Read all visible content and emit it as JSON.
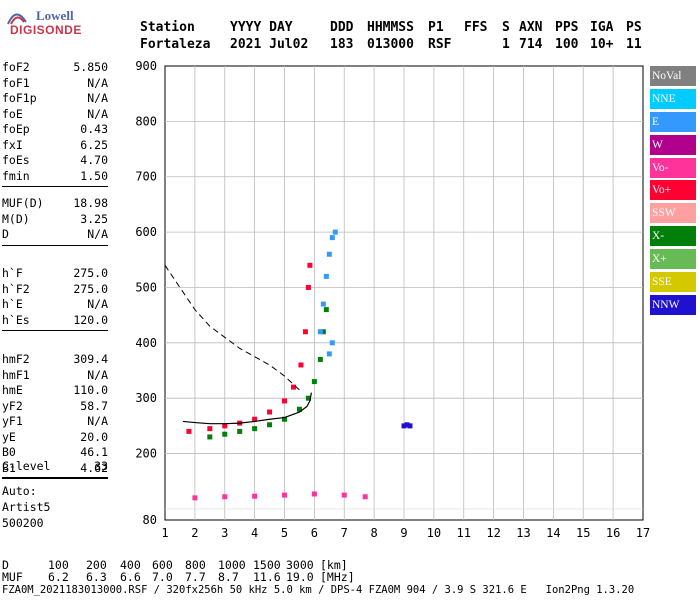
{
  "logo": {
    "line1": "Lowell",
    "line2": "DIGISONDE"
  },
  "header": {
    "row1": [
      "Station",
      "YYYY DAY",
      "DDD",
      "HHMMSS",
      "P1",
      "FFS",
      "S",
      "AXN",
      "PPS",
      "IGA",
      "PS"
    ],
    "row2": [
      "Fortaleza",
      "2021 Jul02",
      "183",
      "013000",
      "RSF",
      "",
      "1",
      "714",
      "100",
      "10+",
      "11"
    ]
  },
  "params": {
    "group1": [
      {
        "key": "foF2",
        "value": "5.850"
      },
      {
        "key": "foF1",
        "value": "N/A"
      },
      {
        "key": "foF1p",
        "value": "N/A"
      },
      {
        "key": "foE",
        "value": "N/A"
      },
      {
        "key": "foEp",
        "value": "0.43"
      },
      {
        "key": "fxI",
        "value": "6.25"
      },
      {
        "key": "foEs",
        "value": "4.70"
      },
      {
        "key": "fmin",
        "value": "1.50"
      }
    ],
    "group2": [
      {
        "key": "MUF(D)",
        "value": "18.98"
      },
      {
        "key": "M(D)",
        "value": "3.25"
      },
      {
        "key": "D",
        "value": "N/A"
      }
    ],
    "group3": [
      {
        "key": "h`F",
        "value": "275.0"
      },
      {
        "key": "h`F2",
        "value": "275.0"
      },
      {
        "key": "h`E",
        "value": "N/A"
      },
      {
        "key": "h`Es",
        "value": "120.0"
      }
    ],
    "group4": [
      {
        "key": "hmF2",
        "value": "309.4"
      },
      {
        "key": "hmF1",
        "value": "N/A"
      },
      {
        "key": "hmE",
        "value": "110.0"
      },
      {
        "key": "yF2",
        "value": "58.7"
      },
      {
        "key": "yF1",
        "value": "N/A"
      },
      {
        "key": "yE",
        "value": "20.0"
      },
      {
        "key": "B0",
        "value": "46.1"
      },
      {
        "key": "B1",
        "value": "4.62"
      }
    ],
    "group5": [
      {
        "key": "C-level",
        "value": "33"
      }
    ],
    "auto": [
      "Auto:",
      "Artist5",
      "500200"
    ]
  },
  "legend": [
    {
      "label": "NoVal",
      "color": "#808080"
    },
    {
      "label": "NNE",
      "color": "#00ccff"
    },
    {
      "label": "E",
      "color": "#3399ff"
    },
    {
      "label": "W",
      "color": "#b0008c"
    },
    {
      "label": "Vo-",
      "color": "#ff3399"
    },
    {
      "label": "Vo+",
      "color": "#ff0033"
    },
    {
      "label": "SSW",
      "color": "#ffa0a0"
    },
    {
      "label": "X-",
      "color": "#00800a"
    },
    {
      "label": "X+",
      "color": "#66bb55"
    },
    {
      "label": "SSE",
      "color": "#d4c800"
    },
    {
      "label": "NNW",
      "color": "#2010d0"
    }
  ],
  "footer": {
    "d_label": "D",
    "d_values": [
      "100",
      "200",
      "400",
      "600",
      "800",
      "1000",
      "1500",
      "3000",
      "[km]"
    ],
    "muf_label": "MUF",
    "muf_values": [
      "6.2",
      "6.3",
      "6.6",
      "7.0",
      "7.7",
      "8.7",
      "11.6",
      "19.0",
      "[MHz]"
    ],
    "bottom": "FZA0M_2021183013000.RSF / 320fx256h 50 kHz 5.0 km / DPS-4 FZA0M 904 / 3.9 S 321.6 E   Ion2Png 1.3.20"
  },
  "chart_data": {
    "type": "scatter",
    "title": "",
    "xlabel": "",
    "ylabel": "",
    "xlim": [
      1,
      17
    ],
    "ylim": [
      80,
      900
    ],
    "x_ticks": [
      1,
      2,
      3,
      4,
      5,
      6,
      7,
      8,
      9,
      10,
      11,
      12,
      13,
      14,
      15,
      16,
      17
    ],
    "y_ticks": [
      80,
      200,
      300,
      400,
      500,
      600,
      700,
      800,
      900
    ],
    "grid": true,
    "colors": {
      "o_trace": "#ff3399",
      "o_trace_plus": "#ff0033",
      "x_trace": "#00800a",
      "x_trace_plus": "#66bb55",
      "east": "#3399ff",
      "nne": "#00ccff",
      "west": "#b0008c",
      "nnw": "#2010d0",
      "ssw": "#ffa0a0"
    },
    "series": [
      {
        "name": "Vo+",
        "values": [
          [
            1.8,
            240
          ],
          [
            2.5,
            245
          ],
          [
            3.0,
            250
          ],
          [
            3.5,
            255
          ],
          [
            4.0,
            262
          ],
          [
            4.5,
            275
          ],
          [
            5.0,
            295
          ],
          [
            5.3,
            320
          ],
          [
            5.55,
            360
          ],
          [
            5.7,
            420
          ],
          [
            5.8,
            500
          ],
          [
            5.85,
            540
          ]
        ]
      },
      {
        "name": "X-",
        "values": [
          [
            2.5,
            230
          ],
          [
            3.0,
            235
          ],
          [
            3.5,
            240
          ],
          [
            4.0,
            245
          ],
          [
            4.5,
            252
          ],
          [
            5.0,
            262
          ],
          [
            5.5,
            280
          ],
          [
            5.8,
            300
          ],
          [
            6.0,
            330
          ],
          [
            6.2,
            370
          ],
          [
            6.3,
            420
          ],
          [
            6.4,
            460
          ]
        ]
      },
      {
        "name": "E",
        "values": [
          [
            6.2,
            420
          ],
          [
            6.3,
            470
          ],
          [
            6.4,
            520
          ],
          [
            6.5,
            560
          ],
          [
            6.6,
            590
          ],
          [
            6.7,
            600
          ],
          [
            6.5,
            380
          ],
          [
            6.6,
            400
          ]
        ]
      },
      {
        "name": "Vo-",
        "values": [
          [
            2.0,
            120
          ],
          [
            3.0,
            122
          ],
          [
            4.0,
            123
          ],
          [
            5.0,
            125
          ],
          [
            6.0,
            127
          ],
          [
            7.0,
            125
          ],
          [
            7.7,
            122
          ]
        ]
      },
      {
        "name": "NNW",
        "values": [
          [
            9.0,
            250
          ],
          [
            9.1,
            252
          ],
          [
            9.2,
            250
          ]
        ]
      }
    ],
    "model_curve": [
      [
        5.9,
        310
      ],
      [
        5.85,
        295
      ],
      [
        5.75,
        285
      ],
      [
        5.5,
        275
      ],
      [
        5.0,
        265
      ],
      [
        4.5,
        262
      ],
      [
        4.0,
        258
      ],
      [
        3.5,
        255
      ],
      [
        3.0,
        254
      ],
      [
        2.5,
        254
      ],
      [
        2.0,
        256
      ],
      [
        1.6,
        258
      ]
    ],
    "muf_curve": [
      [
        1.0,
        540
      ],
      [
        1.5,
        500
      ],
      [
        2.0,
        460
      ],
      [
        2.5,
        430
      ],
      [
        3.0,
        410
      ],
      [
        3.5,
        390
      ],
      [
        4.0,
        375
      ],
      [
        4.5,
        360
      ],
      [
        5.0,
        340
      ],
      [
        5.5,
        315
      ]
    ]
  }
}
